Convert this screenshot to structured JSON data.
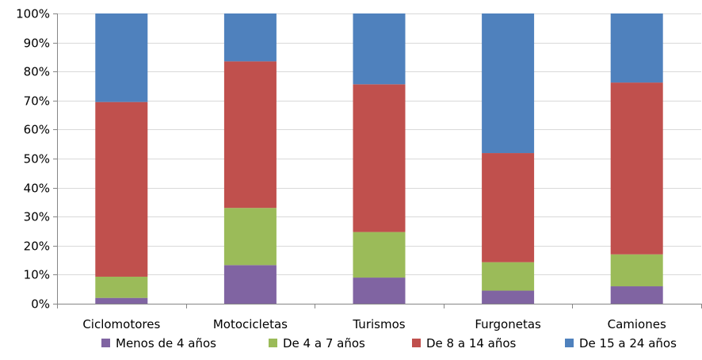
{
  "chart_data": {
    "type": "bar",
    "stacked": true,
    "categories": [
      "Ciclomotores",
      "Motocicletas",
      "Turismos",
      "Furgonetas",
      "Camiones"
    ],
    "series": [
      {
        "name": "Menos de 4 años",
        "color": "#8064a2",
        "values": [
          2,
          13.3,
          9,
          4.5,
          6
        ]
      },
      {
        "name": "De 4 a 7 años",
        "color": "#9bbb59",
        "values": [
          7.3,
          19.7,
          15.7,
          9.8,
          11
        ]
      },
      {
        "name": "De 8 a 14 años",
        "color": "#c0504d",
        "values": [
          60.2,
          50.5,
          50.9,
          37.6,
          59.2
        ]
      },
      {
        "name": "De 15 a 24 años",
        "color": "#4f81bd",
        "values": [
          30.5,
          16.5,
          24.4,
          48.1,
          23.8
        ]
      }
    ],
    "ylim": [
      0,
      100
    ],
    "yticks": [
      "0%",
      "10%",
      "20%",
      "30%",
      "40%",
      "50%",
      "60%",
      "70%",
      "80%",
      "90%",
      "100%"
    ],
    "title": "",
    "xlabel": "",
    "ylabel": "",
    "grid": true,
    "legend_position": "bottom"
  }
}
